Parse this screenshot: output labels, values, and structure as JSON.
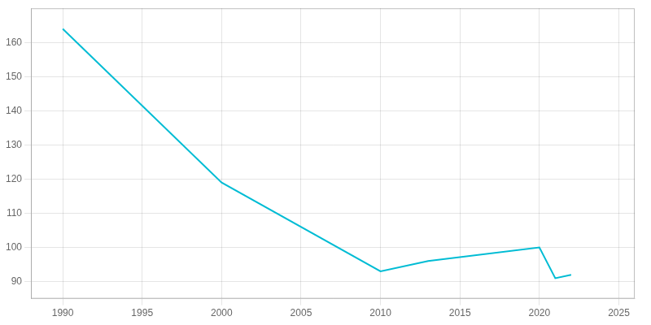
{
  "chart_data": {
    "type": "line",
    "x": [
      1990,
      2000,
      2010,
      2013,
      2020,
      2021,
      2022
    ],
    "values": [
      164,
      119,
      93,
      96,
      100,
      91,
      92
    ],
    "color": "#00bcd4",
    "xlim": [
      1988,
      2026
    ],
    "ylim": [
      85,
      170
    ],
    "xticks": [
      1990,
      1995,
      2000,
      2005,
      2010,
      2015,
      2020,
      2025
    ],
    "yticks": [
      90,
      100,
      110,
      120,
      130,
      140,
      150,
      160
    ],
    "grid": true
  }
}
